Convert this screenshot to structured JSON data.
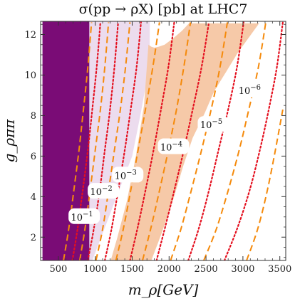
{
  "chart_data": {
    "type": "line",
    "title": "σ(pp → ρX) [pb] at LHC7",
    "xlabel": "m_ρ[GeV]",
    "ylabel": "g_ρππ",
    "xlim": [
      260,
      3580
    ],
    "ylim": [
      0.85,
      12.65
    ],
    "x_ticks": [
      500,
      1000,
      1500,
      2000,
      2500,
      3000,
      3500
    ],
    "y_ticks": [
      2,
      4,
      6,
      8,
      10,
      12
    ],
    "grid": false,
    "colors": {
      "excluded_dark": "#7a0c76",
      "excluded_light": "#ecdcee",
      "band": "#f6c9a8",
      "dashed": "#f58a0b",
      "dotted": "#e4101f"
    },
    "regions": [
      {
        "name": "dark",
        "points": [
          [
            285,
            0.85
          ],
          [
            920,
            0.85
          ],
          [
            920,
            12.65
          ],
          [
            285,
            12.65
          ]
        ]
      },
      {
        "name": "light",
        "points": [
          [
            920,
            0.85
          ],
          [
            960,
            0.85
          ],
          [
            1500,
            6.0
          ],
          [
            1610,
            8.0
          ],
          [
            1700,
            9.8
          ],
          [
            1735,
            10.6
          ],
          [
            1740,
            12.65
          ],
          [
            920,
            12.65
          ]
        ]
      },
      {
        "name": "band",
        "points": [
          [
            1210,
            0.85
          ],
          [
            1760,
            0.85
          ],
          [
            1900,
            2.2
          ],
          [
            2060,
            3.9
          ],
          [
            2190,
            5.5
          ],
          [
            2320,
            6.9
          ],
          [
            2480,
            8.1
          ],
          [
            2610,
            9.2
          ],
          [
            2780,
            10.2
          ],
          [
            2930,
            11.1
          ],
          [
            3090,
            11.9
          ],
          [
            3220,
            12.55
          ],
          [
            2270,
            12.55
          ],
          [
            2180,
            12.2
          ],
          [
            2050,
            11.8
          ],
          [
            1940,
            11.5
          ],
          [
            1860,
            11.4
          ],
          [
            1800,
            11.35
          ],
          [
            1760,
            11.4
          ],
          [
            1720,
            11.5
          ],
          [
            1660,
            8.5
          ],
          [
            1550,
            6.0
          ],
          [
            1430,
            3.8
          ],
          [
            1300,
            2.0
          ]
        ]
      }
    ],
    "series": [
      {
        "style": "dashed",
        "x": [
          570,
          640,
          710,
          780,
          840,
          900,
          950
        ],
        "y": [
          0.85,
          2.4,
          4.3,
          6.3,
          8.3,
          10.4,
          12.6
        ]
      },
      {
        "style": "dotted",
        "x": [
          690,
          760,
          830,
          900,
          960,
          1020,
          1070
        ],
        "y": [
          0.85,
          2.4,
          4.3,
          6.3,
          8.3,
          10.4,
          12.6
        ]
      },
      {
        "style": "dashed",
        "x": [
          790,
          860,
          930,
          1000,
          1070,
          1130,
          1180
        ],
        "y": [
          0.85,
          2.4,
          4.3,
          6.3,
          8.3,
          10.4,
          12.6
        ]
      },
      {
        "style": "dotted",
        "x": [
          900,
          980,
          1060,
          1130,
          1200,
          1260,
          1310
        ],
        "y": [
          0.85,
          2.4,
          4.3,
          6.3,
          8.3,
          10.4,
          12.6
        ]
      },
      {
        "style": "dashed",
        "x": [
          1010,
          1100,
          1180,
          1260,
          1340,
          1410,
          1470
        ],
        "y": [
          0.85,
          2.4,
          4.3,
          6.3,
          8.3,
          10.4,
          12.6
        ]
      },
      {
        "style": "dotted",
        "x": [
          1130,
          1220,
          1310,
          1400,
          1480,
          1560,
          1620
        ],
        "y": [
          0.85,
          2.4,
          4.3,
          6.3,
          8.3,
          10.4,
          12.6
        ]
      },
      {
        "style": "dashed",
        "x": [
          1280,
          1380,
          1480,
          1580,
          1680,
          1780,
          1870
        ],
        "y": [
          0.85,
          2.4,
          4.3,
          6.3,
          8.3,
          10.4,
          12.6
        ]
      },
      {
        "style": "dotted",
        "x": [
          1470,
          1570,
          1680,
          1790,
          1890,
          1990,
          2070
        ],
        "y": [
          0.85,
          2.4,
          4.3,
          6.3,
          8.3,
          10.4,
          12.6
        ]
      },
      {
        "style": "dashed",
        "x": [
          1640,
          1750,
          1870,
          1990,
          2100,
          2200,
          2290
        ],
        "y": [
          0.85,
          2.4,
          4.3,
          6.3,
          8.3,
          10.4,
          12.6
        ]
      },
      {
        "style": "dotted",
        "x": [
          1830,
          1940,
          2070,
          2200,
          2320,
          2440,
          2540
        ],
        "y": [
          0.85,
          2.4,
          4.3,
          6.3,
          8.3,
          10.4,
          12.6
        ]
      },
      {
        "style": "dashed",
        "x": [
          2020,
          2160,
          2300,
          2440,
          2570,
          2690,
          2790
        ],
        "y": [
          0.85,
          2.4,
          4.3,
          6.3,
          8.3,
          10.4,
          12.6
        ]
      },
      {
        "style": "dotted",
        "x": [
          2260,
          2400,
          2540,
          2670,
          2800,
          2920,
          3010
        ],
        "y": [
          0.85,
          2.4,
          4.3,
          6.3,
          8.3,
          10.4,
          12.6
        ]
      },
      {
        "style": "dashed",
        "x": [
          2470,
          2640,
          2800,
          2950,
          3080,
          3210,
          3310
        ],
        "y": [
          0.85,
          2.4,
          4.3,
          6.3,
          8.3,
          10.4,
          12.6
        ]
      },
      {
        "style": "dotted",
        "x": [
          2750,
          2920,
          3090,
          3230,
          3350,
          3460,
          3540
        ],
        "y": [
          0.85,
          2.4,
          4.3,
          6.3,
          8.3,
          10.4,
          12.6
        ]
      },
      {
        "style": "dashed",
        "x": [
          3050,
          3200,
          3330,
          3440,
          3540
        ],
        "y": [
          0.85,
          2.4,
          4.3,
          6.3,
          8.3
        ]
      }
    ],
    "annotations": [
      {
        "base": "10",
        "exp": "−1",
        "x": 850,
        "y": 3.0
      },
      {
        "base": "10",
        "exp": "−2",
        "x": 1110,
        "y": 4.25
      },
      {
        "base": "10",
        "exp": "−3",
        "x": 1440,
        "y": 5.05
      },
      {
        "base": "10",
        "exp": "−4",
        "x": 2060,
        "y": 6.45
      },
      {
        "base": "10",
        "exp": "−5",
        "x": 2600,
        "y": 7.55
      },
      {
        "base": "10",
        "exp": "−6",
        "x": 3120,
        "y": 9.25
      }
    ]
  }
}
